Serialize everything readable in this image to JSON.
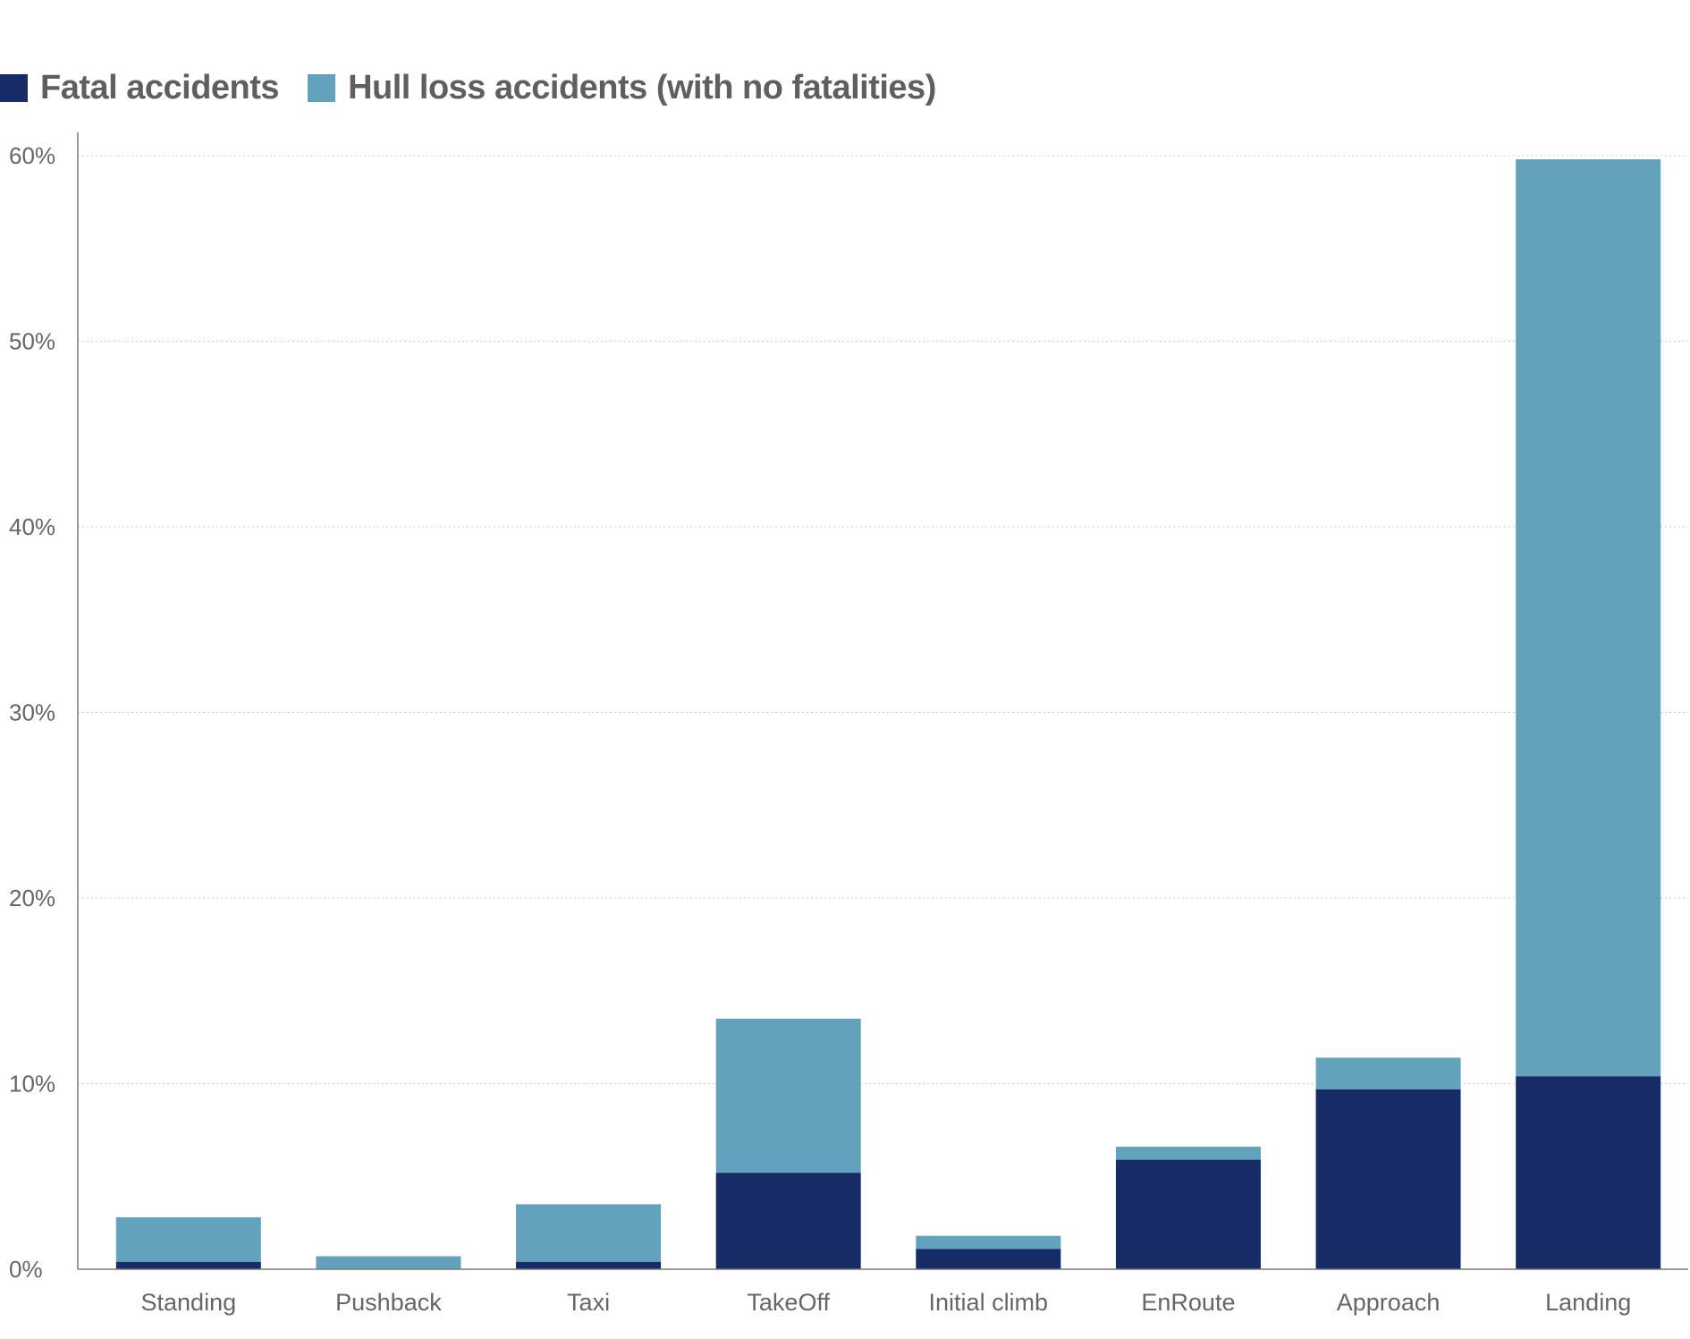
{
  "legend": {
    "items": [
      {
        "label": "Fatal accidents",
        "color": "#172b66"
      },
      {
        "label": "Hull loss accidents (with no fatalities)",
        "color": "#62a2bd"
      }
    ]
  },
  "chart_data": {
    "type": "bar",
    "stacked": true,
    "title": "",
    "xlabel": "",
    "ylabel": "",
    "ylim": [
      0,
      60
    ],
    "y_ticks": [
      0,
      10,
      20,
      30,
      40,
      50,
      60
    ],
    "y_tick_labels": [
      "0%",
      "10%",
      "20%",
      "30%",
      "40%",
      "50%",
      "60%"
    ],
    "grid": true,
    "legend_position": "top-left",
    "categories": [
      "Standing",
      "Pushback",
      "Taxi",
      "TakeOff",
      "Initial climb",
      "EnRoute",
      "Approach",
      "Landing"
    ],
    "series": [
      {
        "name": "Fatal accidents",
        "color": "#172b66",
        "values": [
          0.4,
          0.0,
          0.4,
          5.2,
          1.1,
          5.9,
          9.7,
          10.4
        ]
      },
      {
        "name": "Hull loss accidents (with no fatalities)",
        "color": "#62a2bd",
        "values": [
          2.4,
          0.7,
          3.1,
          8.3,
          0.7,
          0.7,
          1.7,
          49.4
        ]
      }
    ]
  }
}
